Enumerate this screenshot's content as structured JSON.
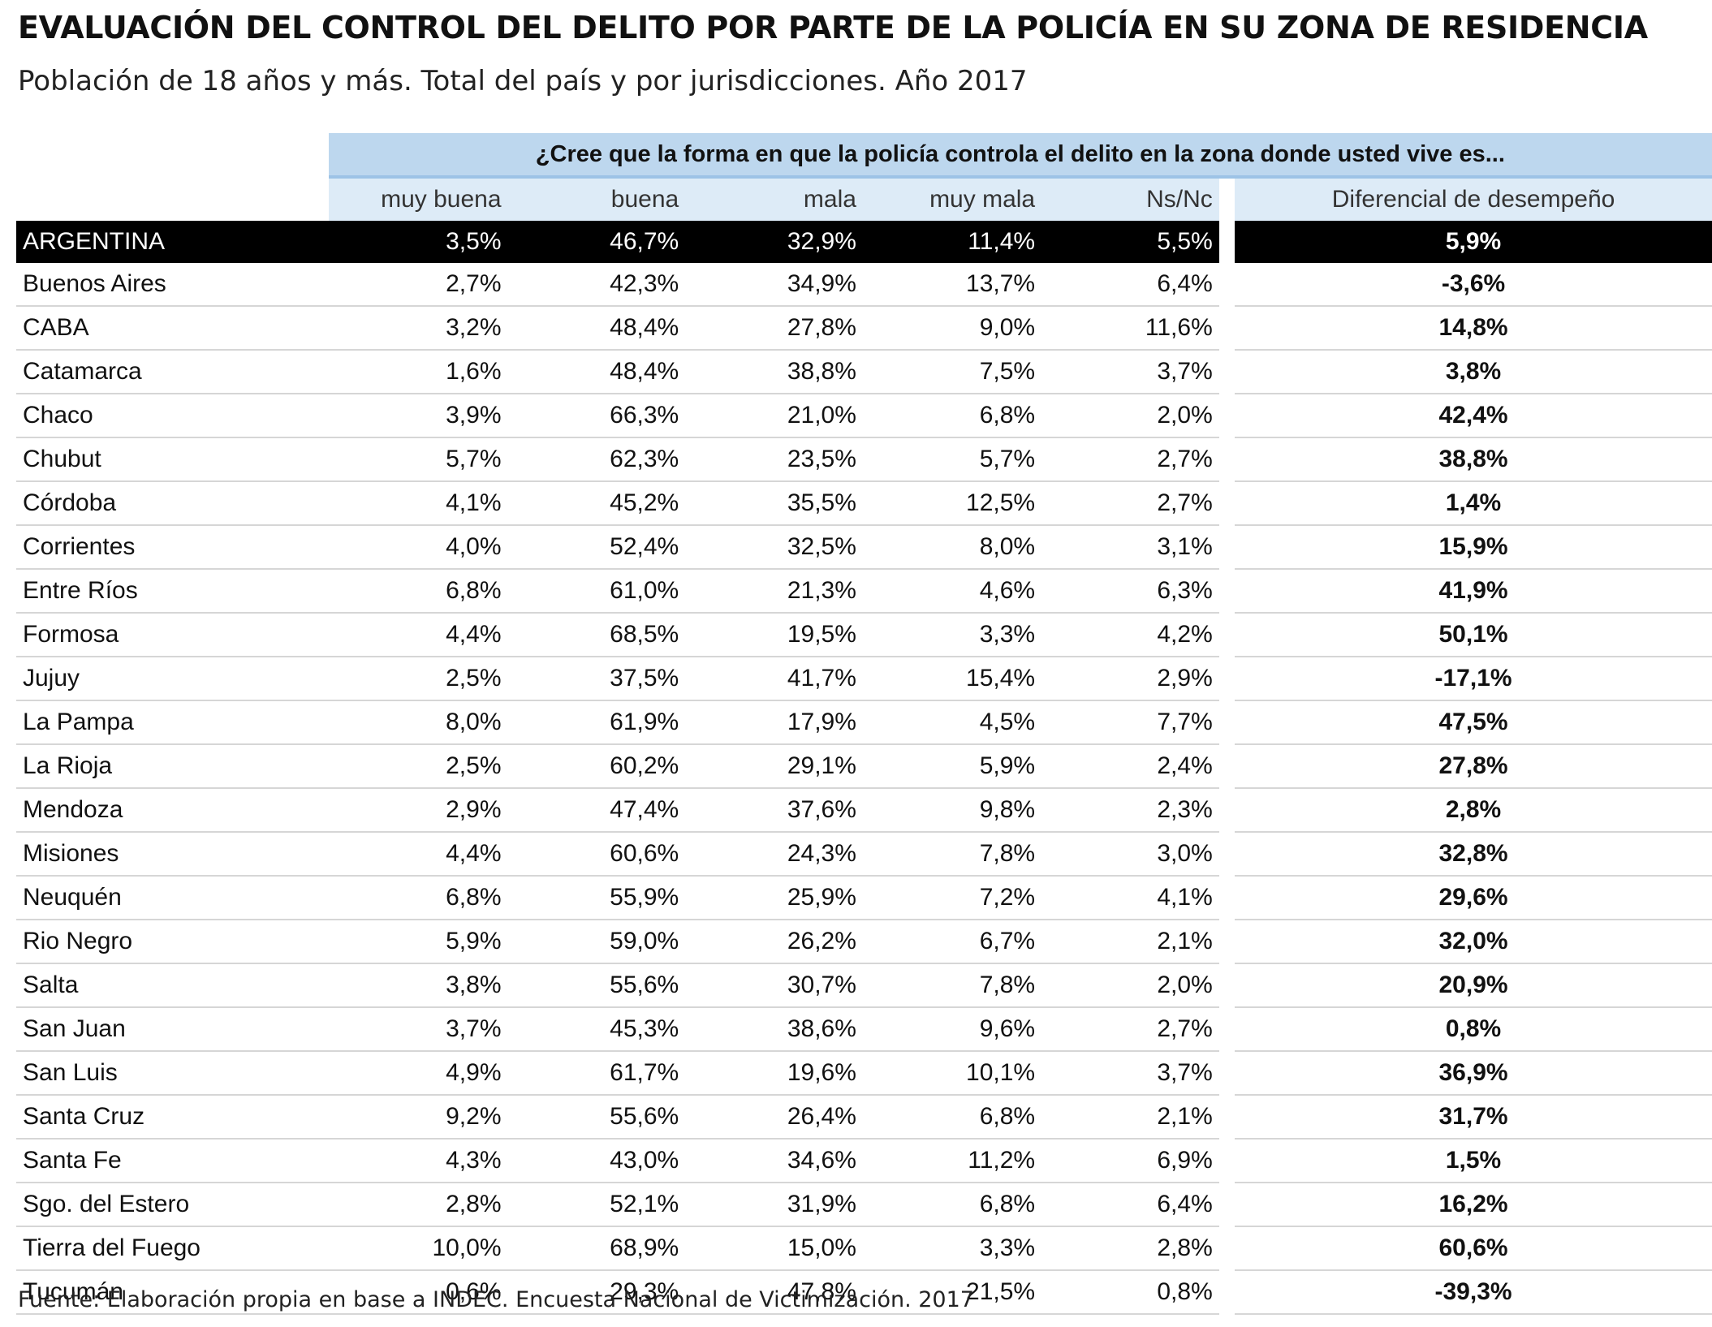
{
  "chart_data": {
    "type": "table",
    "title": "EVALUACIÓN DEL CONTROL DEL DELITO POR PARTE DE LA POLICÍA EN SU ZONA DE RESIDENCIA",
    "subtitle": "Población de 18 años y más. Total del país y por jurisdicciones. Año 2017",
    "question": "¿Cree que la forma en que la policía controla el delito en la zona donde usted vive es...",
    "columns": [
      "muy buena",
      "buena",
      "mala",
      "muy mala",
      "Ns/Nc"
    ],
    "diff_column": "Diferencial de desempeño",
    "total": {
      "name": "ARGENTINA",
      "values": [
        "3,5%",
        "46,7%",
        "32,9%",
        "11,4%",
        "5,5%"
      ],
      "diff": "5,9%"
    },
    "rows": [
      {
        "name": "Buenos Aires",
        "values": [
          "2,7%",
          "42,3%",
          "34,9%",
          "13,7%",
          "6,4%"
        ],
        "diff": "-3,6%"
      },
      {
        "name": "CABA",
        "values": [
          "3,2%",
          "48,4%",
          "27,8%",
          "9,0%",
          "11,6%"
        ],
        "diff": "14,8%"
      },
      {
        "name": "Catamarca",
        "values": [
          "1,6%",
          "48,4%",
          "38,8%",
          "7,5%",
          "3,7%"
        ],
        "diff": "3,8%"
      },
      {
        "name": "Chaco",
        "values": [
          "3,9%",
          "66,3%",
          "21,0%",
          "6,8%",
          "2,0%"
        ],
        "diff": "42,4%"
      },
      {
        "name": "Chubut",
        "values": [
          "5,7%",
          "62,3%",
          "23,5%",
          "5,7%",
          "2,7%"
        ],
        "diff": "38,8%"
      },
      {
        "name": "Córdoba",
        "values": [
          "4,1%",
          "45,2%",
          "35,5%",
          "12,5%",
          "2,7%"
        ],
        "diff": "1,4%"
      },
      {
        "name": "Corrientes",
        "values": [
          "4,0%",
          "52,4%",
          "32,5%",
          "8,0%",
          "3,1%"
        ],
        "diff": "15,9%"
      },
      {
        "name": "Entre Ríos",
        "values": [
          "6,8%",
          "61,0%",
          "21,3%",
          "4,6%",
          "6,3%"
        ],
        "diff": "41,9%"
      },
      {
        "name": "Formosa",
        "values": [
          "4,4%",
          "68,5%",
          "19,5%",
          "3,3%",
          "4,2%"
        ],
        "diff": "50,1%"
      },
      {
        "name": "Jujuy",
        "values": [
          "2,5%",
          "37,5%",
          "41,7%",
          "15,4%",
          "2,9%"
        ],
        "diff": "-17,1%"
      },
      {
        "name": "La Pampa",
        "values": [
          "8,0%",
          "61,9%",
          "17,9%",
          "4,5%",
          "7,7%"
        ],
        "diff": "47,5%"
      },
      {
        "name": "La Rioja",
        "values": [
          "2,5%",
          "60,2%",
          "29,1%",
          "5,9%",
          "2,4%"
        ],
        "diff": "27,8%"
      },
      {
        "name": "Mendoza",
        "values": [
          "2,9%",
          "47,4%",
          "37,6%",
          "9,8%",
          "2,3%"
        ],
        "diff": "2,8%"
      },
      {
        "name": "Misiones",
        "values": [
          "4,4%",
          "60,6%",
          "24,3%",
          "7,8%",
          "3,0%"
        ],
        "diff": "32,8%"
      },
      {
        "name": "Neuquén",
        "values": [
          "6,8%",
          "55,9%",
          "25,9%",
          "7,2%",
          "4,1%"
        ],
        "diff": "29,6%"
      },
      {
        "name": "Rio Negro",
        "values": [
          "5,9%",
          "59,0%",
          "26,2%",
          "6,7%",
          "2,1%"
        ],
        "diff": "32,0%"
      },
      {
        "name": "Salta",
        "values": [
          "3,8%",
          "55,6%",
          "30,7%",
          "7,8%",
          "2,0%"
        ],
        "diff": "20,9%"
      },
      {
        "name": "San Juan",
        "values": [
          "3,7%",
          "45,3%",
          "38,6%",
          "9,6%",
          "2,7%"
        ],
        "diff": "0,8%"
      },
      {
        "name": "San Luis",
        "values": [
          "4,9%",
          "61,7%",
          "19,6%",
          "10,1%",
          "3,7%"
        ],
        "diff": "36,9%"
      },
      {
        "name": "Santa Cruz",
        "values": [
          "9,2%",
          "55,6%",
          "26,4%",
          "6,8%",
          "2,1%"
        ],
        "diff": "31,7%"
      },
      {
        "name": "Santa Fe",
        "values": [
          "4,3%",
          "43,0%",
          "34,6%",
          "11,2%",
          "6,9%"
        ],
        "diff": "1,5%"
      },
      {
        "name": "Sgo. del Estero",
        "values": [
          "2,8%",
          "52,1%",
          "31,9%",
          "6,8%",
          "6,4%"
        ],
        "diff": "16,2%"
      },
      {
        "name": "Tierra del Fuego",
        "values": [
          "10,0%",
          "68,9%",
          "15,0%",
          "3,3%",
          "2,8%"
        ],
        "diff": "60,6%"
      },
      {
        "name": "Tucumán",
        "values": [
          "0,6%",
          "29,3%",
          "47,8%",
          "21,5%",
          "0,8%"
        ],
        "diff": "-39,3%"
      }
    ],
    "source": "Fuente: Elaboración propia en base a INDEC. Encuesta Nacional de Victimización. 2017"
  }
}
